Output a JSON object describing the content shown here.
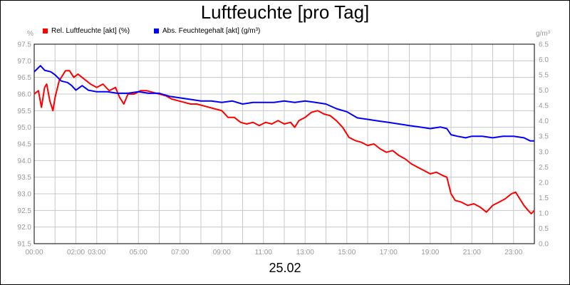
{
  "title": "Luftfeuchte [pro Tag]",
  "date_label": "25.02",
  "left_unit": "%",
  "right_unit": "g/m³",
  "legend": [
    {
      "label": "Rel. Luftfeuchte [akt] (%)",
      "color": "#ff0000"
    },
    {
      "label": "Abs. Feuchtegehalt [akt] (g/m³)",
      "color": "#0000ff"
    }
  ],
  "chart_data": {
    "type": "line",
    "title": "Luftfeuchte [pro Tag]",
    "xlabel": "25.02",
    "xlim": [
      0,
      24
    ],
    "x_ticks": [
      {
        "h": 0,
        "label": "00:00"
      },
      {
        "h": 2,
        "label": "02:00"
      },
      {
        "h": 3,
        "label": "03:00"
      },
      {
        "h": 5,
        "label": "05:00"
      },
      {
        "h": 7,
        "label": "07:00"
      },
      {
        "h": 9,
        "label": "09:00"
      },
      {
        "h": 11,
        "label": "11:00"
      },
      {
        "h": 13,
        "label": "13:00"
      },
      {
        "h": 15,
        "label": "15:00"
      },
      {
        "h": 17,
        "label": "17:00"
      },
      {
        "h": 19,
        "label": "19:00"
      },
      {
        "h": 21,
        "label": "21:00"
      },
      {
        "h": 23,
        "label": "23:00"
      }
    ],
    "y_left": {
      "label": "%",
      "min": 91.5,
      "max": 97.5,
      "step": 0.5,
      "ticks": [
        "91.5",
        "92.0",
        "92.5",
        "93.0",
        "93.5",
        "94.0",
        "94.5",
        "95.0",
        "95.5",
        "96.0",
        "96.5",
        "97.0",
        "97.5"
      ]
    },
    "y_right": {
      "label": "g/m³",
      "min": 0.0,
      "max": 6.5,
      "step": 0.5,
      "ticks": [
        "0.0",
        "0.5",
        "1.0",
        "1.5",
        "2.0",
        "2.5",
        "3.0",
        "3.5",
        "4.0",
        "4.5",
        "5.0",
        "5.5",
        "6.0",
        "6.5"
      ]
    },
    "grid": true,
    "legend_position": "top-left",
    "series": [
      {
        "name": "Rel. Luftfeuchte [akt] (%)",
        "axis": "left",
        "color": "#ff0000",
        "points": [
          [
            0.0,
            96.0
          ],
          [
            0.2,
            96.1
          ],
          [
            0.35,
            95.6
          ],
          [
            0.5,
            96.2
          ],
          [
            0.6,
            96.3
          ],
          [
            0.75,
            95.8
          ],
          [
            0.9,
            95.5
          ],
          [
            1.0,
            95.9
          ],
          [
            1.2,
            96.4
          ],
          [
            1.5,
            96.7
          ],
          [
            1.7,
            96.7
          ],
          [
            1.9,
            96.5
          ],
          [
            2.1,
            96.6
          ],
          [
            2.3,
            96.5
          ],
          [
            2.5,
            96.4
          ],
          [
            2.7,
            96.3
          ],
          [
            3.0,
            96.2
          ],
          [
            3.3,
            96.3
          ],
          [
            3.6,
            96.1
          ],
          [
            3.9,
            96.2
          ],
          [
            4.1,
            95.9
          ],
          [
            4.3,
            95.7
          ],
          [
            4.5,
            96.0
          ],
          [
            4.8,
            96.0
          ],
          [
            5.1,
            96.1
          ],
          [
            5.4,
            96.1
          ],
          [
            5.7,
            96.05
          ],
          [
            6.0,
            96.0
          ],
          [
            6.3,
            95.95
          ],
          [
            6.6,
            95.85
          ],
          [
            6.9,
            95.8
          ],
          [
            7.2,
            95.75
          ],
          [
            7.5,
            95.7
          ],
          [
            7.8,
            95.7
          ],
          [
            8.1,
            95.65
          ],
          [
            8.4,
            95.6
          ],
          [
            8.7,
            95.55
          ],
          [
            9.0,
            95.5
          ],
          [
            9.3,
            95.3
          ],
          [
            9.6,
            95.3
          ],
          [
            9.9,
            95.15
          ],
          [
            10.2,
            95.1
          ],
          [
            10.5,
            95.15
          ],
          [
            10.8,
            95.05
          ],
          [
            11.1,
            95.15
          ],
          [
            11.4,
            95.1
          ],
          [
            11.7,
            95.2
          ],
          [
            12.0,
            95.1
          ],
          [
            12.3,
            95.15
          ],
          [
            12.5,
            95.0
          ],
          [
            12.7,
            95.2
          ],
          [
            13.0,
            95.3
          ],
          [
            13.3,
            95.45
          ],
          [
            13.6,
            95.5
          ],
          [
            13.9,
            95.4
          ],
          [
            14.2,
            95.35
          ],
          [
            14.5,
            95.2
          ],
          [
            14.8,
            95.0
          ],
          [
            15.1,
            94.7
          ],
          [
            15.4,
            94.6
          ],
          [
            15.7,
            94.55
          ],
          [
            16.0,
            94.45
          ],
          [
            16.3,
            94.5
          ],
          [
            16.6,
            94.35
          ],
          [
            16.9,
            94.25
          ],
          [
            17.2,
            94.3
          ],
          [
            17.5,
            94.15
          ],
          [
            17.8,
            94.05
          ],
          [
            18.1,
            93.9
          ],
          [
            18.4,
            93.8
          ],
          [
            18.7,
            93.7
          ],
          [
            19.0,
            93.6
          ],
          [
            19.3,
            93.65
          ],
          [
            19.6,
            93.55
          ],
          [
            19.8,
            93.5
          ],
          [
            20.0,
            93.0
          ],
          [
            20.2,
            92.8
          ],
          [
            20.5,
            92.75
          ],
          [
            20.8,
            92.65
          ],
          [
            21.1,
            92.7
          ],
          [
            21.4,
            92.6
          ],
          [
            21.7,
            92.45
          ],
          [
            22.0,
            92.65
          ],
          [
            22.3,
            92.75
          ],
          [
            22.6,
            92.85
          ],
          [
            22.9,
            93.0
          ],
          [
            23.1,
            93.05
          ],
          [
            23.3,
            92.85
          ],
          [
            23.5,
            92.65
          ],
          [
            23.7,
            92.5
          ],
          [
            23.85,
            92.4
          ],
          [
            24.0,
            92.5
          ]
        ]
      },
      {
        "name": "Abs. Feuchtegehalt [akt] (g/m³)",
        "axis": "right",
        "color": "#0000ff",
        "points": [
          [
            0.0,
            5.6
          ],
          [
            0.15,
            5.7
          ],
          [
            0.3,
            5.8
          ],
          [
            0.5,
            5.65
          ],
          [
            0.8,
            5.6
          ],
          [
            1.0,
            5.5
          ],
          [
            1.3,
            5.3
          ],
          [
            1.6,
            5.25
          ],
          [
            1.8,
            5.15
          ],
          [
            2.0,
            5.0
          ],
          [
            2.3,
            5.15
          ],
          [
            2.6,
            5.0
          ],
          [
            3.0,
            4.95
          ],
          [
            3.5,
            4.95
          ],
          [
            4.0,
            4.9
          ],
          [
            4.5,
            4.9
          ],
          [
            5.0,
            4.95
          ],
          [
            5.5,
            4.9
          ],
          [
            6.0,
            4.9
          ],
          [
            6.5,
            4.8
          ],
          [
            7.0,
            4.75
          ],
          [
            7.5,
            4.7
          ],
          [
            8.0,
            4.65
          ],
          [
            8.5,
            4.65
          ],
          [
            9.0,
            4.6
          ],
          [
            9.5,
            4.65
          ],
          [
            10.0,
            4.55
          ],
          [
            10.5,
            4.6
          ],
          [
            11.0,
            4.6
          ],
          [
            11.5,
            4.6
          ],
          [
            12.0,
            4.65
          ],
          [
            12.5,
            4.6
          ],
          [
            13.0,
            4.65
          ],
          [
            13.5,
            4.6
          ],
          [
            14.0,
            4.55
          ],
          [
            14.5,
            4.4
          ],
          [
            15.0,
            4.3
          ],
          [
            15.5,
            4.1
          ],
          [
            16.0,
            4.05
          ],
          [
            16.5,
            4.0
          ],
          [
            17.0,
            3.95
          ],
          [
            17.5,
            3.9
          ],
          [
            18.0,
            3.85
          ],
          [
            18.5,
            3.8
          ],
          [
            19.0,
            3.75
          ],
          [
            19.5,
            3.8
          ],
          [
            19.8,
            3.75
          ],
          [
            20.0,
            3.55
          ],
          [
            20.3,
            3.5
          ],
          [
            20.7,
            3.45
          ],
          [
            21.0,
            3.5
          ],
          [
            21.5,
            3.5
          ],
          [
            22.0,
            3.45
          ],
          [
            22.5,
            3.5
          ],
          [
            23.0,
            3.5
          ],
          [
            23.5,
            3.45
          ],
          [
            23.8,
            3.35
          ],
          [
            24.0,
            3.35
          ]
        ]
      }
    ]
  }
}
